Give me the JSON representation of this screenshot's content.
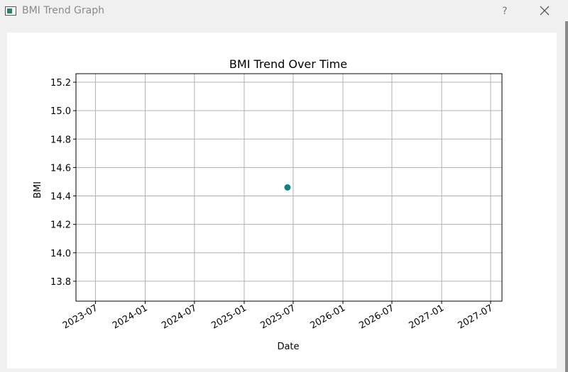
{
  "window": {
    "title": "BMI Trend Graph",
    "help_label": "?",
    "icons": {
      "app": "window-app-icon",
      "help": "help-icon",
      "close": "close-icon"
    }
  },
  "chart_data": {
    "type": "scatter",
    "title": "BMI Trend Over Time",
    "xlabel": "Date",
    "ylabel": "BMI",
    "x_ticks": [
      "2023-07",
      "2024-01",
      "2024-07",
      "2025-01",
      "2025-07",
      "2026-01",
      "2026-07",
      "2027-01",
      "2027-07"
    ],
    "y_ticks": [
      13.8,
      14.0,
      14.2,
      14.4,
      14.6,
      14.8,
      15.0,
      15.2
    ],
    "xlim": [
      "2023-04-20",
      "2027-08-12"
    ],
    "ylim": [
      13.66,
      15.26
    ],
    "grid": true,
    "points": [
      {
        "x": "2025-06-10",
        "y": 14.46
      }
    ],
    "marker_color": "#127f80"
  }
}
